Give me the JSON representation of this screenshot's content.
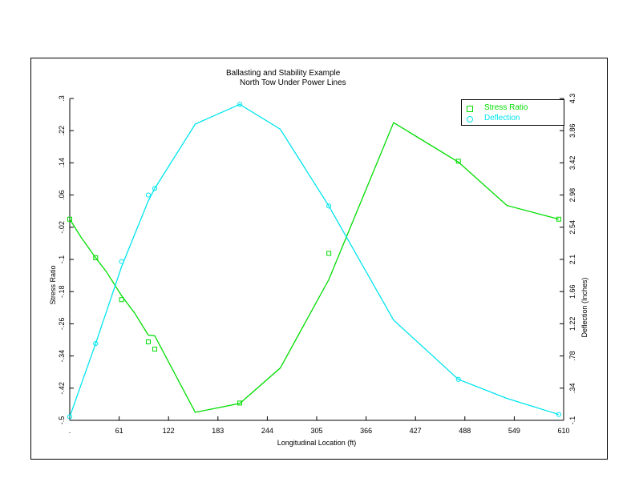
{
  "chart_data": {
    "type": "line",
    "title": "Ballasting and Stability Example",
    "subtitle": "North Tow Under Power Lines",
    "xlabel": "Longitudinal Location (ft)",
    "ylabel": "Stress Ratio",
    "y2label": "Deflection (Inches)",
    "xlim": [
      0,
      610
    ],
    "ylim": [
      -0.5,
      0.3
    ],
    "y2lim": [
      -0.1,
      4.3
    ],
    "x_ticks": [
      ".",
      "61",
      "122",
      "183",
      "244",
      "305",
      "366",
      "427",
      "488",
      "549",
      "610"
    ],
    "y_ticks": [
      "-.5",
      "-.42",
      "-.34",
      "-.26",
      "-.18",
      "-.1",
      "-.02",
      ".06",
      ".14",
      ".22",
      ".3"
    ],
    "y2_ticks": [
      "-.1",
      ".34",
      ".78",
      "1.22",
      "1.66",
      "2.1",
      "2.54",
      "2.98",
      "3.42",
      "3.86",
      "4.3"
    ],
    "grid": false,
    "legend_position": "top-right",
    "series": [
      {
        "name": "Stress Ratio",
        "axis": "left",
        "color": "#00dd00",
        "marker": "square",
        "line_x": [
          0,
          14,
          32,
          45,
          64,
          80,
          97,
          105,
          155,
          210,
          260,
          320,
          400,
          480,
          540,
          604
        ],
        "line_y": [
          0.0,
          -0.045,
          -0.096,
          -0.13,
          -0.19,
          -0.233,
          -0.288,
          -0.29,
          -0.48,
          -0.458,
          -0.37,
          -0.15,
          0.24,
          0.142,
          0.034,
          0.0
        ],
        "markers_x": [
          0,
          32,
          64,
          97,
          105,
          210,
          320,
          480,
          604
        ],
        "markers_y": [
          0.0,
          -0.096,
          -0.2,
          -0.305,
          -0.323,
          -0.457,
          -0.085,
          0.144,
          0.0
        ]
      },
      {
        "name": "Deflection",
        "axis": "right",
        "color": "#00e5ee",
        "marker": "circle",
        "line_x": [
          0,
          32,
          64,
          97,
          105,
          155,
          210,
          260,
          320,
          400,
          480,
          540,
          604
        ],
        "line_y": [
          -0.05,
          0.95,
          2.0,
          2.9,
          3.07,
          3.95,
          4.22,
          3.88,
          2.83,
          1.27,
          0.46,
          0.2,
          -0.02
        ],
        "markers_x": [
          0,
          32,
          64,
          97,
          105,
          210,
          320,
          480,
          604
        ],
        "markers_y": [
          -0.05,
          0.95,
          2.07,
          2.98,
          3.07,
          4.22,
          2.83,
          0.46,
          -0.02
        ]
      }
    ]
  }
}
